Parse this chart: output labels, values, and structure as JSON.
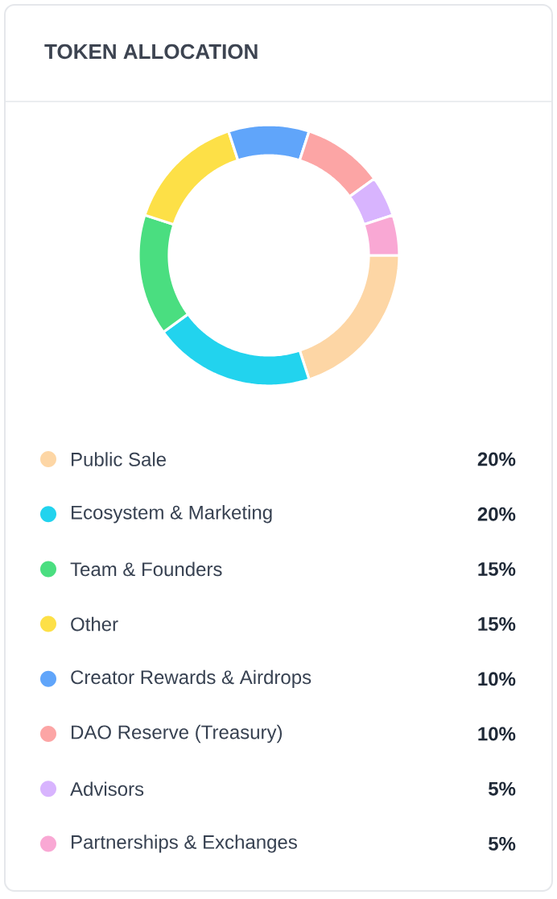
{
  "chart_data": {
    "type": "donut",
    "title": "TOKEN ALLOCATION",
    "categories": [
      "Public Sale",
      "Ecosystem & Marketing",
      "Team & Founders",
      "Other",
      "Creator Rewards & Airdrops",
      "DAO Reserve (Treasury)",
      "Advisors",
      "Partnerships & Exchanges"
    ],
    "values": [
      20,
      20,
      15,
      15,
      10,
      10,
      5,
      5
    ],
    "colors": [
      "#fdd6a5",
      "#22d3ee",
      "#4ade80",
      "#fde047",
      "#60a5fa",
      "#fca5a5",
      "#d8b4fe",
      "#f9a8d4"
    ],
    "value_labels": [
      "20%",
      "20%",
      "15%",
      "15%",
      "10%",
      "10%",
      "5%",
      "5%"
    ],
    "legend": "bottom"
  }
}
